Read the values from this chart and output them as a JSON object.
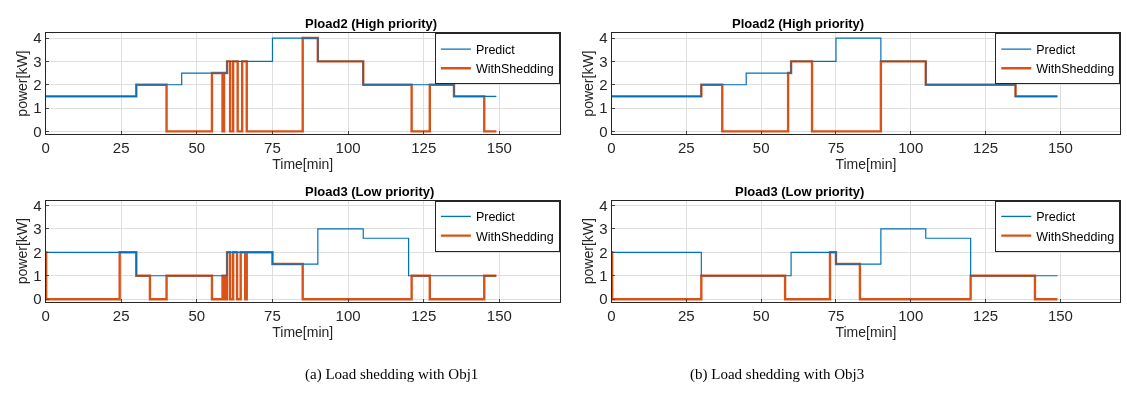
{
  "chart_data": [
    {
      "type": "step",
      "title": "Pload2 (High priority)",
      "xlabel": "Time[min]",
      "ylabel": "power[kW]",
      "xlim": [
        0,
        170
      ],
      "xticks": [
        0,
        25,
        50,
        75,
        100,
        125,
        150
      ],
      "ylim": [
        -0.1,
        4.2
      ],
      "yticks": [
        0,
        1,
        2,
        3,
        4
      ],
      "grid": true,
      "legend": "top right",
      "marker": "none",
      "series": [
        {
          "name": "Predict",
          "color": "#0072bd",
          "x": [
            0,
            30,
            45,
            60,
            75,
            90,
            105,
            135,
            149
          ],
          "values": [
            1.5,
            2,
            2.5,
            3,
            4,
            3,
            2,
            1.5,
            1.5
          ]
        },
        {
          "name": "WithShedding",
          "color": "#d95319",
          "x": [
            0,
            30,
            40,
            55,
            58.5,
            59,
            60,
            61,
            62,
            63.5,
            65,
            66.5,
            85,
            90,
            105,
            121,
            127,
            135,
            145,
            149
          ],
          "values": [
            1.5,
            2,
            0,
            2.5,
            0,
            2.5,
            3,
            0,
            3,
            0,
            3,
            0,
            4,
            3,
            2,
            0,
            2,
            1.5,
            0,
            0
          ]
        }
      ]
    },
    {
      "type": "step",
      "title": "Pload2 (High priority)",
      "xlabel": "Time[min]",
      "ylabel": "power[kW]",
      "xlim": [
        0,
        170
      ],
      "xticks": [
        0,
        25,
        50,
        75,
        100,
        125,
        150
      ],
      "ylim": [
        -0.1,
        4.2
      ],
      "yticks": [
        0,
        1,
        2,
        3,
        4
      ],
      "grid": true,
      "legend": "top right",
      "marker": "none",
      "series": [
        {
          "name": "Predict",
          "color": "#0072bd",
          "x": [
            0,
            30,
            45,
            60,
            75,
            90,
            105,
            135,
            149
          ],
          "values": [
            1.5,
            2,
            2.5,
            3,
            4,
            3,
            2,
            1.5,
            1.5
          ]
        },
        {
          "name": "WithShedding",
          "color": "#d95319",
          "x": [
            0,
            30,
            37,
            59,
            60,
            67,
            90,
            105,
            135,
            149
          ],
          "values": [
            1.5,
            2,
            0,
            2.5,
            3,
            0,
            3,
            2,
            1.5,
            1.5
          ]
        }
      ]
    },
    {
      "type": "step",
      "title": "Pload3 (Low priority)",
      "xlabel": "Time[min]",
      "ylabel": "power[kW]",
      "xlim": [
        0,
        170
      ],
      "xticks": [
        0,
        25,
        50,
        75,
        100,
        125,
        150
      ],
      "ylim": [
        -0.1,
        4.2
      ],
      "yticks": [
        0,
        1,
        2,
        3,
        4
      ],
      "grid": true,
      "legend": "top right",
      "marker": "none",
      "annotations": [
        "(a) Load shedding with Obj1"
      ],
      "series": [
        {
          "name": "Predict",
          "color": "#0072bd",
          "x": [
            0,
            30,
            60,
            75,
            90,
            105,
            120,
            149
          ],
          "values": [
            2,
            1,
            2,
            1.5,
            3,
            2.6,
            1,
            1
          ]
        },
        {
          "name": "WithShedding",
          "color": "#d95319",
          "x": [
            0,
            0.2,
            24.5,
            30,
            34.5,
            40,
            55,
            58.5,
            59.3,
            60,
            61,
            62,
            63.3,
            64.5,
            66,
            66.5,
            75,
            85,
            121,
            127,
            145,
            149
          ],
          "values": [
            2,
            0,
            2,
            1,
            0,
            1,
            0,
            1,
            0,
            2,
            0,
            2,
            0,
            2,
            0,
            2,
            1.5,
            0,
            1,
            0,
            1,
            1
          ]
        }
      ]
    },
    {
      "type": "step",
      "title": "Pload3 (Low priority)",
      "xlabel": "Time[min]",
      "ylabel": "power[kW]",
      "xlim": [
        0,
        170
      ],
      "xticks": [
        0,
        25,
        50,
        75,
        100,
        125,
        150
      ],
      "ylim": [
        -0.1,
        4.2
      ],
      "yticks": [
        0,
        1,
        2,
        3,
        4
      ],
      "grid": true,
      "legend": "top right",
      "marker": "none",
      "annotations": [
        "(b) Load shedding with Obj3"
      ],
      "series": [
        {
          "name": "Predict",
          "color": "#0072bd",
          "x": [
            0,
            30,
            60,
            75,
            90,
            105,
            120,
            149
          ],
          "values": [
            2,
            1,
            2,
            1.5,
            3,
            2.6,
            1,
            1
          ]
        },
        {
          "name": "WithShedding",
          "color": "#d95319",
          "x": [
            0,
            0.2,
            30,
            58,
            73,
            75,
            83,
            120,
            141.5,
            149
          ],
          "values": [
            2,
            0,
            1,
            0,
            2,
            1.5,
            0,
            1,
            0,
            0
          ]
        }
      ]
    }
  ]
}
